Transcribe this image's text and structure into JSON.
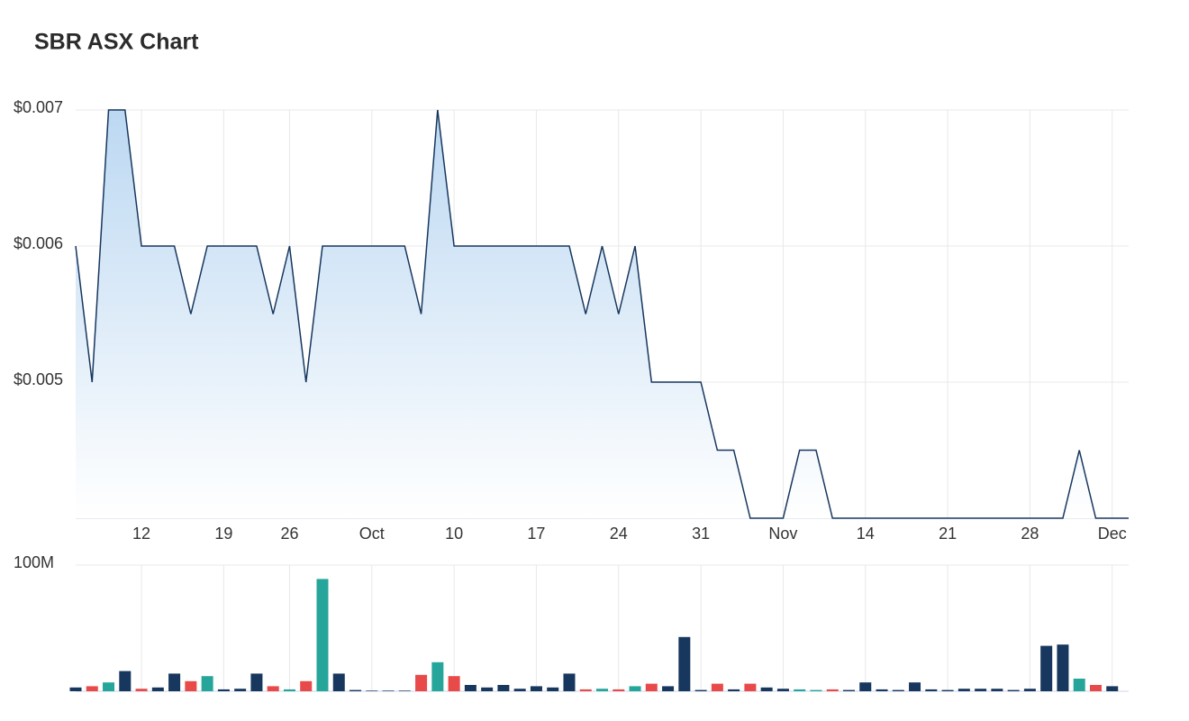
{
  "chart_data": [
    {
      "type": "area",
      "title": "SBR ASX Chart",
      "color": "#17375e",
      "grid": true,
      "categories": [
        null,
        null,
        null,
        null,
        "12",
        null,
        null,
        null,
        null,
        "19",
        null,
        null,
        null,
        "26",
        null,
        null,
        null,
        null,
        "Oct",
        null,
        null,
        null,
        null,
        "10",
        null,
        null,
        null,
        null,
        "17",
        null,
        null,
        null,
        null,
        "24",
        null,
        null,
        null,
        null,
        "31",
        null,
        null,
        null,
        null,
        "Nov",
        null,
        null,
        null,
        null,
        "14",
        null,
        null,
        null,
        null,
        "21",
        null,
        null,
        null,
        null,
        "28",
        null,
        null,
        null,
        null,
        "Dec",
        null
      ],
      "values": [
        0.006,
        0.005,
        0.007,
        0.007,
        0.006,
        0.006,
        0.006,
        0.0055,
        0.006,
        0.006,
        0.006,
        0.006,
        0.0055,
        0.006,
        0.005,
        0.006,
        0.006,
        0.006,
        0.006,
        0.006,
        0.006,
        0.0055,
        0.007,
        0.006,
        0.006,
        0.006,
        0.006,
        0.006,
        0.006,
        0.006,
        0.006,
        0.0055,
        0.006,
        0.0055,
        0.006,
        0.005,
        0.005,
        0.005,
        0.005,
        0.0045,
        0.0045,
        0.004,
        0.004,
        0.004,
        0.0045,
        0.0045,
        0.004,
        0.004,
        0.004,
        0.004,
        0.004,
        0.004,
        0.004,
        0.004,
        0.004,
        0.004,
        0.004,
        0.004,
        0.004,
        0.004,
        0.004,
        0.0045,
        0.004,
        0.004,
        0.004
      ],
      "ylim": [
        0.004,
        0.007
      ],
      "yticks": [
        {
          "value": 0.005,
          "label": "$0.005"
        },
        {
          "value": 0.006,
          "label": "$0.006"
        },
        {
          "value": 0.007,
          "label": "$0.007"
        }
      ]
    },
    {
      "type": "bar",
      "grid": true,
      "values": [
        3,
        4,
        7,
        16,
        2,
        3,
        14,
        8,
        12,
        1.5,
        2,
        14,
        4,
        1.5,
        8,
        89,
        14,
        1,
        0.5,
        0.5,
        0.5,
        13,
        23,
        12,
        5,
        3,
        5,
        2,
        4,
        3,
        14,
        1.5,
        2,
        1.5,
        4,
        6,
        4,
        43,
        1,
        6,
        1.5,
        6,
        3,
        2,
        1.5,
        1,
        1.5,
        1,
        7,
        1.5,
        1,
        7,
        1.5,
        1,
        2,
        2,
        2,
        1,
        2,
        36,
        37,
        10,
        5,
        4,
        null
      ],
      "colors": [
        "#17375e",
        "#e84a4a",
        "#26a69a",
        "#17375e",
        "#e84a4a",
        "#17375e",
        "#17375e",
        "#e84a4a",
        "#26a69a",
        "#17375e",
        "#17375e",
        "#17375e",
        "#e84a4a",
        "#26a69a",
        "#e84a4a",
        "#26a69a",
        "#17375e",
        "#17375e",
        "#17375e",
        "#17375e",
        "#17375e",
        "#e84a4a",
        "#26a69a",
        "#e84a4a",
        "#17375e",
        "#17375e",
        "#17375e",
        "#17375e",
        "#17375e",
        "#17375e",
        "#17375e",
        "#e84a4a",
        "#26a69a",
        "#e84a4a",
        "#26a69a",
        "#e84a4a",
        "#17375e",
        "#17375e",
        "#17375e",
        "#e84a4a",
        "#17375e",
        "#e84a4a",
        "#17375e",
        "#17375e",
        "#26a69a",
        "#26a69a",
        "#e84a4a",
        "#17375e",
        "#17375e",
        "#17375e",
        "#17375e",
        "#17375e",
        "#17375e",
        "#17375e",
        "#17375e",
        "#17375e",
        "#17375e",
        "#17375e",
        "#17375e",
        "#17375e",
        "#17375e",
        "#26a69a",
        "#e84a4a",
        "#17375e",
        "#17375e"
      ],
      "ylim": [
        0,
        100
      ],
      "yticks": [
        {
          "value": 100,
          "label": "100M"
        }
      ]
    }
  ]
}
